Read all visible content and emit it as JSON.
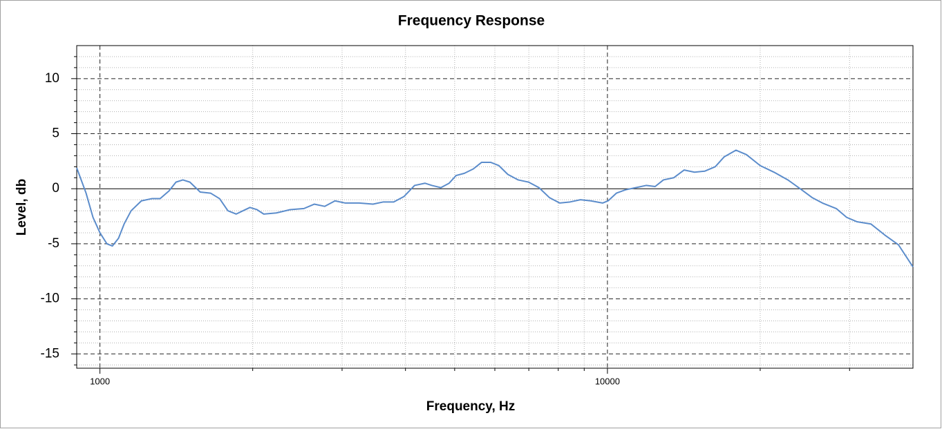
{
  "chart_data": {
    "type": "line",
    "title": "Frequency Response",
    "xlabel": "Frequency, Hz",
    "ylabel": "Level, db",
    "xscale": "log",
    "xlim": [
      900,
      40000
    ],
    "ylim": [
      -16.3,
      13
    ],
    "xticks": [
      1000,
      10000
    ],
    "yticks": [
      -15,
      -10,
      -5,
      0,
      5,
      10
    ],
    "x_minor_ticks": [
      2000,
      3000,
      4000,
      5000,
      6000,
      7000,
      8000,
      9000,
      20000,
      30000
    ],
    "y_minor_ticks": [
      -16,
      -14,
      -13,
      -12,
      -11,
      -9,
      -8,
      -7,
      -6,
      -4,
      -3,
      -2,
      -1,
      1,
      2,
      3,
      4,
      6,
      7,
      8,
      9,
      11,
      12
    ],
    "grid": true,
    "series": [
      {
        "name": "Level",
        "color": "#5b8ccb",
        "x": [
          900,
          939,
          969,
          1000,
          1032,
          1058,
          1088,
          1116,
          1152,
          1207,
          1265,
          1314,
          1368,
          1412,
          1457,
          1504,
          1576,
          1652,
          1721,
          1787,
          1855,
          1914,
          1975,
          2039,
          2103,
          2226,
          2370,
          2523,
          2644,
          2772,
          2905,
          3045,
          3242,
          3452,
          3618,
          3792,
          3975,
          4169,
          4369,
          4509,
          4696,
          4876,
          5032,
          5225,
          5442,
          5651,
          5886,
          6111,
          6365,
          6672,
          6993,
          7330,
          7683,
          8053,
          8441,
          8847,
          9273,
          9783,
          10031,
          10416,
          10849,
          11372,
          11920,
          12416,
          12893,
          13513,
          14165,
          14846,
          15560,
          16312,
          16990,
          17922,
          18787,
          20001,
          21296,
          22679,
          24145,
          25308,
          26527,
          28246,
          29605,
          31039,
          33047,
          35186,
          37461,
          40000
        ],
        "values": [
          1.9,
          -0.4,
          -2.6,
          -4.0,
          -5.0,
          -5.2,
          -4.5,
          -3.2,
          -2.0,
          -1.1,
          -0.9,
          -0.9,
          -0.2,
          0.6,
          0.8,
          0.6,
          -0.3,
          -0.4,
          -0.9,
          -2.0,
          -2.3,
          -2.0,
          -1.7,
          -1.9,
          -2.3,
          -2.2,
          -1.9,
          -1.8,
          -1.4,
          -1.6,
          -1.1,
          -1.3,
          -1.3,
          -1.4,
          -1.2,
          -1.2,
          -0.7,
          0.3,
          0.5,
          0.3,
          0.1,
          0.5,
          1.2,
          1.4,
          1.8,
          2.4,
          2.4,
          2.1,
          1.3,
          0.8,
          0.6,
          0.1,
          -0.8,
          -1.3,
          -1.2,
          -1.0,
          -1.1,
          -1.3,
          -1.1,
          -0.4,
          -0.1,
          0.1,
          0.3,
          0.2,
          0.8,
          1.0,
          1.7,
          1.5,
          1.6,
          2.0,
          2.9,
          3.5,
          3.1,
          2.1,
          1.5,
          0.8,
          -0.1,
          -0.8,
          -1.3,
          -1.8,
          -2.6,
          -3.0,
          -3.2,
          -4.2,
          -5.1,
          -7.1
        ]
      }
    ]
  }
}
